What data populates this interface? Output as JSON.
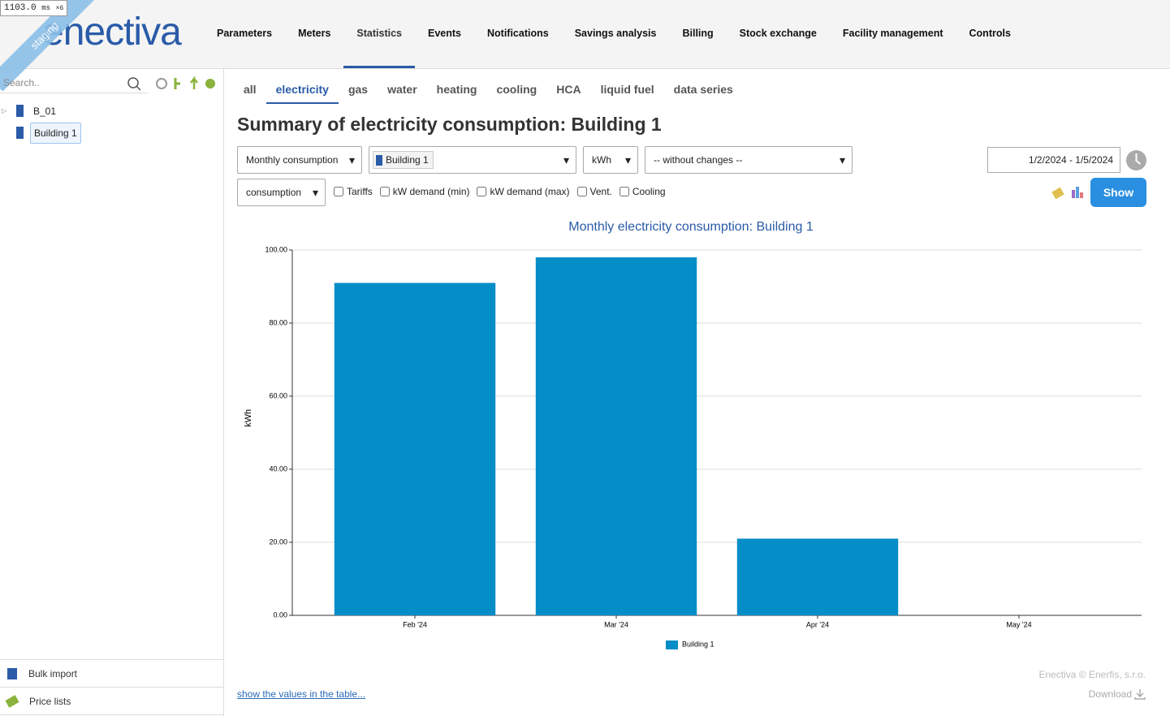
{
  "debug": {
    "time": "1103.0",
    "unit": "ms",
    "factor": "×6"
  },
  "badge": "staging",
  "logo": "enectiva",
  "nav": {
    "items": [
      "Parameters",
      "Meters",
      "Statistics",
      "Events",
      "Notifications",
      "Savings analysis",
      "Billing",
      "Stock exchange",
      "Facility management",
      "Controls"
    ],
    "active": 2
  },
  "sidebar": {
    "search_placeholder": "Search..",
    "tree": [
      "B_01",
      "Building 1"
    ],
    "footer": [
      "Bulk import",
      "Price lists"
    ]
  },
  "tabs": {
    "items": [
      "all",
      "electricity",
      "gas",
      "water",
      "heating",
      "cooling",
      "HCA",
      "liquid fuel",
      "data series"
    ],
    "active": 1
  },
  "heading": "Summary of electricity consumption: Building 1",
  "controls": {
    "period": "Monthly consumption",
    "object": "Building 1",
    "unit": "kWh",
    "conversion": "-- without changes --",
    "date_range": "1/2/2024 - 1/5/2024",
    "mode": "consumption",
    "checkboxes": [
      "Tariffs",
      "kW demand (min)",
      "kW demand (max)",
      "Vent.",
      "Cooling"
    ],
    "button": "Show"
  },
  "chart_data": {
    "type": "bar",
    "title": "Monthly electricity consumption: Building 1",
    "y_label": "kWh",
    "categories": [
      "Feb '24",
      "Mar '24",
      "Apr '24",
      "May '24"
    ],
    "series": [
      {
        "name": "Building 1",
        "color": "#058dc7",
        "values": [
          91,
          98,
          21,
          0
        ]
      }
    ],
    "ylim": [
      0,
      100
    ],
    "yticks": [
      {
        "value": 0,
        "label": "0.00"
      },
      {
        "value": 20,
        "label": "20.00"
      },
      {
        "value": 40,
        "label": "40.00"
      },
      {
        "value": 60,
        "label": "60.00"
      },
      {
        "value": 80,
        "label": "80.00"
      },
      {
        "value": 100,
        "label": "100.00"
      }
    ],
    "grid": true,
    "legend": "bottom"
  },
  "footer": {
    "table_link": "show the values in the table...",
    "copyright": "Enectiva © Enerfis, s.r.o.",
    "download": "Download"
  }
}
